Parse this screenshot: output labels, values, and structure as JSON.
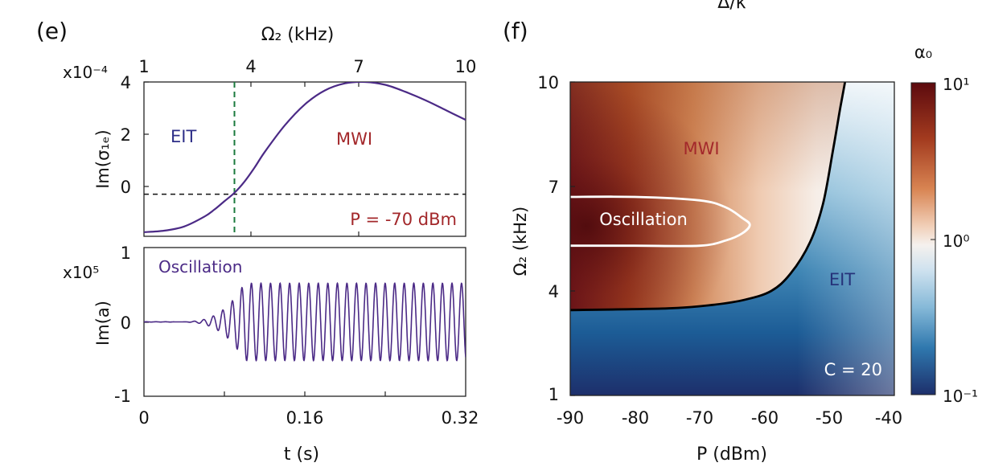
{
  "cutoff_top_label": "Δ/κ",
  "panel_e": {
    "label": "(e)",
    "top_axis_label": "Ω₂ (kHz)",
    "top_axis_ticks": [
      "1",
      "4",
      "7",
      "10"
    ],
    "top_plot": {
      "ylabel": "Im(σ₁ₑ)",
      "exponent": "x10⁻⁴",
      "yticks": [
        "4",
        "2",
        "0"
      ],
      "region_left": "EIT",
      "region_right": "MWI",
      "annotation": "P = -70 dBm"
    },
    "bottom_plot": {
      "ylabel": "Im(a)",
      "exponent": "x10⁵",
      "yticks": [
        "1",
        "0",
        "-1"
      ],
      "annotation": "Oscillation"
    },
    "xlabel": "t (s)",
    "xticks": [
      "0",
      "0.16",
      "0.32"
    ]
  },
  "panel_f": {
    "label": "(f)",
    "xlabel": "P (dBm)",
    "ylabel": "Ω₂ (kHz)",
    "xticks": [
      "-90",
      "-80",
      "-70",
      "-60",
      "-50",
      "-40"
    ],
    "yticks": [
      "10",
      "7",
      "4",
      "1"
    ],
    "region_mwi": "MWI",
    "region_osc": "Oscillation",
    "region_eit": "EIT",
    "annotation": "C = 20",
    "colorbar_title": "α₀",
    "colorbar_ticks": [
      "10¹",
      "10⁰",
      "10⁻¹"
    ]
  },
  "chart_data": [
    {
      "type": "line",
      "panel": "e-top",
      "xlabel": "t (s)",
      "x2label": "Ω₂ (kHz)",
      "ylabel": "Im(σ₁ₑ)",
      "xlim": [
        0,
        0.32
      ],
      "x2lim": [
        1,
        10
      ],
      "ylim": [
        -1.5,
        4
      ],
      "y_scale_factor": "x10⁻⁴",
      "series": [
        {
          "x": [
            0,
            0.02,
            0.04,
            0.06,
            0.07,
            0.08,
            0.09,
            0.1,
            0.11,
            0.12,
            0.14,
            0.16,
            0.18,
            0.2,
            0.22,
            0.24,
            0.26,
            0.28,
            0.3,
            0.32
          ],
          "y": [
            -1.35,
            -1.3,
            -1.15,
            -0.8,
            -0.55,
            -0.25,
            0.05,
            0.45,
            0.95,
            1.5,
            2.45,
            3.2,
            3.7,
            3.95,
            4.0,
            3.9,
            3.65,
            3.35,
            3.0,
            2.65
          ]
        }
      ],
      "reference_lines": [
        {
          "orientation": "horizontal",
          "y": 0,
          "style": "dashed",
          "color": "#000000"
        },
        {
          "orientation": "vertical",
          "x": 0.09,
          "style": "dashed",
          "color": "#1a7a3c"
        }
      ],
      "colors": {
        "line": "#4b2a86"
      }
    },
    {
      "type": "line",
      "panel": "e-bottom",
      "xlabel": "t (s)",
      "ylabel": "Im(a)",
      "xlim": [
        0,
        0.32
      ],
      "ylim": [
        -1,
        1
      ],
      "y_scale_factor": "x10⁵",
      "description_values": {
        "growth_start_t": 0.03,
        "saturation_t": 0.1,
        "saturated_amplitude": 0.52,
        "oscillation_period_s": 0.0095
      },
      "colors": {
        "line": "#4b2a86"
      }
    },
    {
      "type": "heatmap",
      "panel": "f",
      "xlabel": "P (dBm)",
      "ylabel": "Ω₂ (kHz)",
      "xlim": [
        -90,
        -40
      ],
      "ylim": [
        1,
        10
      ],
      "colorbar": {
        "label": "α₀",
        "scale": "log",
        "range": [
          0.1,
          10
        ]
      },
      "boundaries": [
        {
          "name": "EIT/MWI boundary",
          "color": "#000000",
          "points": [
            [
              -90,
              3.45
            ],
            [
              -75,
              3.5
            ],
            [
              -68,
              3.6
            ],
            [
              -63,
              3.75
            ],
            [
              -59,
              4.0
            ],
            [
              -56,
              4.5
            ],
            [
              -53,
              5.4
            ],
            [
              -51,
              6.5
            ],
            [
              -49.5,
              8.0
            ],
            [
              -48.3,
              9.3
            ],
            [
              -47.6,
              10
            ]
          ]
        },
        {
          "name": "Oscillation boundary",
          "color": "#ffffff",
          "points": [
            [
              -90,
              6.7
            ],
            [
              -80,
              6.7
            ],
            [
              -70,
              6.6
            ],
            [
              -66,
              6.4
            ],
            [
              -63.5,
              6.1
            ],
            [
              -62.3,
              5.9
            ],
            [
              -63.5,
              5.65
            ],
            [
              -66,
              5.45
            ],
            [
              -70,
              5.3
            ],
            [
              -80,
              5.3
            ],
            [
              -90,
              5.3
            ]
          ]
        }
      ],
      "colors": {
        "high": "#5c0a0e",
        "mid": "#f6efe9",
        "low": "#1d2f6b"
      }
    }
  ]
}
